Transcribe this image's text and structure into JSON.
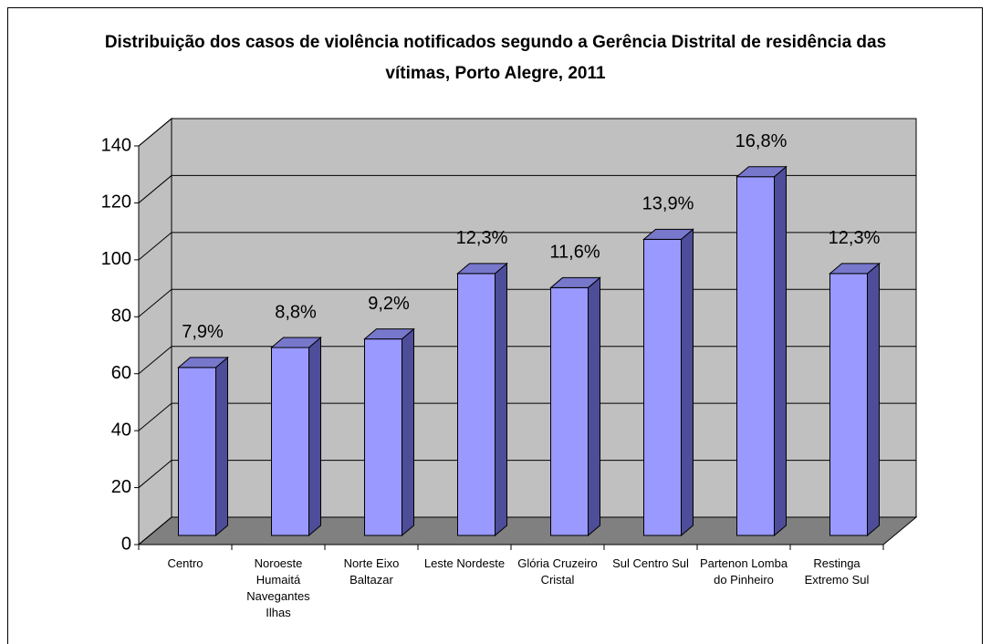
{
  "chart_data": {
    "type": "bar3d",
    "title": "Distribuição dos casos de violência notificados segundo a Gerência Distrital de residência das vítimas, Porto Alegre, 2011",
    "categories": [
      "Centro",
      "Noroeste Humaitá Navegantes Ilhas",
      "Norte Eixo Baltazar",
      "Leste Nordeste",
      "Glória Cruzeiro Cristal",
      "Sul Centro Sul",
      "Partenon Lomba do Pinheiro",
      "Restinga Extremo Sul"
    ],
    "values": [
      59,
      66,
      69,
      92,
      87,
      104,
      126,
      92
    ],
    "data_labels": [
      "7,9%",
      "8,8%",
      "9,2%",
      "12,3%",
      "11,6%",
      "13,9%",
      "16,8%",
      "12,3%"
    ],
    "color": "#9999ff",
    "ylim": [
      0,
      140
    ],
    "yticks": [
      0,
      20,
      40,
      60,
      80,
      100,
      120,
      140
    ],
    "grid": true
  }
}
